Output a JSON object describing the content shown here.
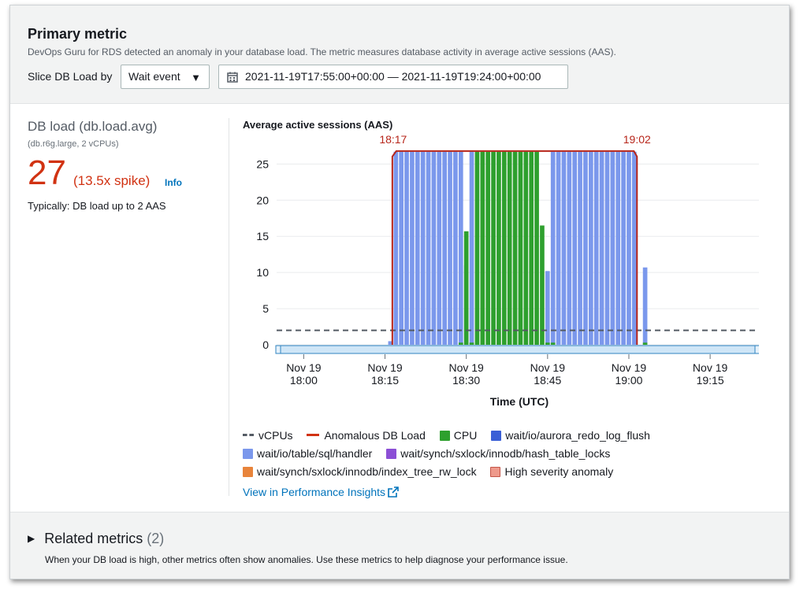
{
  "header": {
    "title": "Primary metric",
    "description": "DevOps Guru for RDS detected an anomaly in your database load. The metric measures database activity in average active sessions (AAS).",
    "slice_label": "Slice DB Load by",
    "slice_value": "Wait event",
    "date_range": "2021-11-19T17:55:00+00:00 — 2021-11-19T19:24:00+00:00"
  },
  "metric": {
    "title": "DB load (db.load.avg)",
    "subtitle": "(db.r6g.large, 2 vCPUs)",
    "value": "27",
    "spike": "(13.5x spike)",
    "info": "Info",
    "typical": "Typically: DB load up to 2 AAS"
  },
  "legend": {
    "vcpus": "vCPUs",
    "anomalous": "Anomalous DB Load",
    "cpu": "CPU",
    "redo": "wait/io/aurora_redo_log_flush",
    "handler": "wait/io/table/sql/handler",
    "hash": "wait/synch/sxlock/innodb/hash_table_locks",
    "index": "wait/synch/sxlock/innodb/index_tree_rw_lock",
    "high": "High severity anomaly",
    "link": "View in Performance Insights"
  },
  "colors": {
    "cpu": "#2ea02e",
    "handler": "#7b98ec",
    "redo": "#3a5fd6",
    "hash": "#8c4fd6",
    "index": "#e8843b",
    "high": "#ee9a8c",
    "anomaly": "#b7251a",
    "vcpu": "#545b64"
  },
  "chart_data": {
    "type": "bar",
    "title": "Average active sessions (AAS)",
    "xlabel": "Time (UTC)",
    "ylabel": "",
    "ylim": [
      0,
      27
    ],
    "yticks": [
      0,
      5,
      10,
      15,
      20,
      25
    ],
    "xticks": [
      {
        "line1": "Nov 19",
        "line2": "18:00",
        "minute": 0
      },
      {
        "line1": "Nov 19",
        "line2": "18:15",
        "minute": 15
      },
      {
        "line1": "Nov 19",
        "line2": "18:30",
        "minute": 30
      },
      {
        "line1": "Nov 19",
        "line2": "18:45",
        "minute": 45
      },
      {
        "line1": "Nov 19",
        "line2": "19:00",
        "minute": 60
      },
      {
        "line1": "Nov 19",
        "line2": "19:15",
        "minute": 75
      }
    ],
    "start_label": "18:17",
    "end_label": "19:02",
    "vcpus": 2,
    "anomaly_level": 26.8,
    "series": [
      {
        "name": "wait/io/table/sql/handler",
        "minutes": [
          16,
          17,
          18,
          19,
          20,
          21,
          22,
          23,
          24,
          25,
          26,
          27,
          28,
          29,
          30,
          31,
          32,
          33,
          34,
          35,
          36,
          37,
          38,
          39,
          40,
          41,
          42,
          43,
          44,
          45,
          46,
          47,
          48,
          49,
          50,
          51,
          52,
          53,
          54,
          55,
          56,
          57,
          58,
          59,
          60,
          61,
          62,
          63
        ],
        "values": [
          0.5,
          26.7,
          26.7,
          26.7,
          26.7,
          26.7,
          26.7,
          26.7,
          26.7,
          26.7,
          26.7,
          26.7,
          26.7,
          26.7,
          11.0,
          26.7,
          0,
          0,
          0,
          0,
          0,
          0,
          0,
          0,
          0,
          0,
          0,
          0,
          0,
          10.2,
          26.7,
          26.7,
          26.7,
          26.7,
          26.7,
          26.7,
          26.7,
          26.7,
          26.7,
          26.7,
          26.7,
          26.7,
          26.7,
          26.7,
          26.7,
          26.7,
          0,
          10.7
        ]
      },
      {
        "name": "CPU",
        "minutes": [
          29,
          30,
          31,
          32,
          33,
          34,
          35,
          36,
          37,
          38,
          39,
          40,
          41,
          42,
          43,
          44,
          45,
          46,
          63
        ],
        "values": [
          0.3,
          15.7,
          0.3,
          26.7,
          26.7,
          26.7,
          26.7,
          26.7,
          26.7,
          26.7,
          26.7,
          26.7,
          26.7,
          26.7,
          26.7,
          16.5,
          0.3,
          0.3,
          0.3
        ]
      }
    ]
  }
}
